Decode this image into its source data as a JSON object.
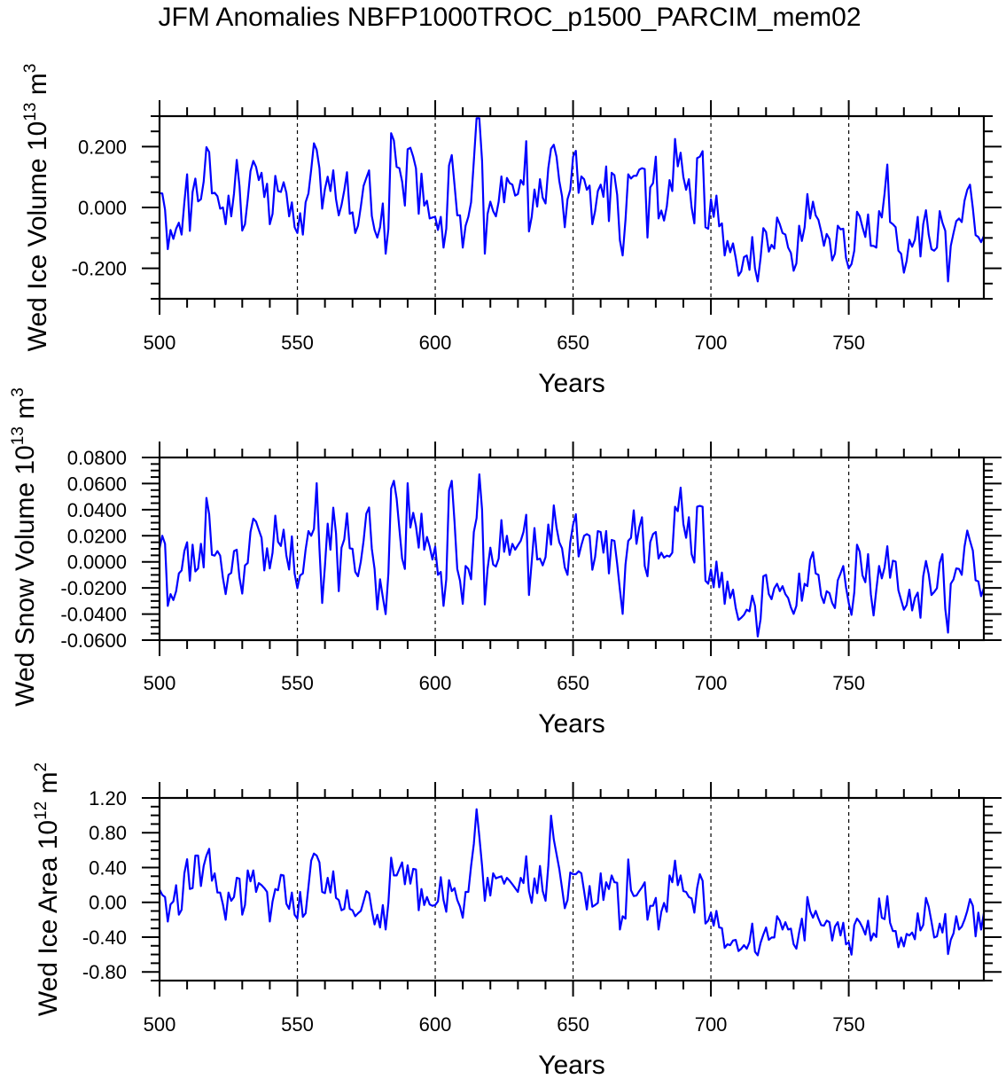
{
  "title": "JFM Anomalies NBFP1000TROC_p1500_PARCIM_mem02",
  "colors": {
    "series": "#0000ff",
    "axes": "#000000",
    "reference_lines": "#000000"
  },
  "chart_data": [
    {
      "type": "line",
      "xlabel": "Years",
      "ylabel": {
        "text": "Wed Ice Volume 10",
        "exp1": "13",
        "unit": " m",
        "exp2": "3"
      },
      "xlim": [
        500,
        799
      ],
      "ylim": [
        -0.3,
        0.3
      ],
      "x_start": 500,
      "xticks": [
        500,
        550,
        600,
        650,
        700,
        750
      ],
      "xtick_labels": [
        "500",
        "550",
        "600",
        "650",
        "700",
        "750"
      ],
      "yticks": [
        0.2,
        0.0,
        -0.2
      ],
      "ytick_labels": [
        "0.200",
        "0.000",
        "-0.200"
      ],
      "y_minor_step": 0.05,
      "x_minor_step": 10,
      "reference_lines_x": [
        550,
        600,
        650,
        700,
        750
      ],
      "grid": false,
      "values": [
        0.047,
        0.046,
        -0.007,
        -0.137,
        -0.074,
        -0.103,
        -0.07,
        -0.05,
        -0.089,
        0.017,
        0.109,
        -0.077,
        0.051,
        0.095,
        0.02,
        0.027,
        0.085,
        0.198,
        0.182,
        0.046,
        0.048,
        0.037,
        -0.004,
        0.0,
        -0.055,
        0.039,
        -0.029,
        0.046,
        0.156,
        0.071,
        -0.076,
        -0.055,
        0.027,
        0.119,
        0.153,
        0.133,
        0.09,
        0.114,
        0.034,
        0.078,
        -0.055,
        -0.021,
        0.104,
        0.054,
        0.051,
        0.083,
        0.048,
        -0.029,
        0.017,
        -0.065,
        -0.084,
        -0.019,
        -0.089,
        0.017,
        0.046,
        0.124,
        0.211,
        0.189,
        0.129,
        -0.004,
        0.061,
        0.101,
        0.054,
        0.122,
        0.027,
        -0.026,
        0.008,
        0.056,
        0.116,
        -0.021,
        -0.016,
        -0.084,
        -0.06,
        0.003,
        0.071,
        0.097,
        0.122,
        -0.028,
        -0.074,
        -0.099,
        -0.065,
        0.013,
        -0.152,
        -0.07,
        0.244,
        0.22,
        0.133,
        0.129,
        0.085,
        0.006,
        0.191,
        0.196,
        0.167,
        0.129,
        -0.021,
        0.111,
        0.006,
        0.022,
        -0.036,
        -0.033,
        -0.031,
        -0.074,
        -0.031,
        -0.132,
        -0.07,
        0.138,
        0.172,
        0.075,
        -0.026,
        -0.026,
        -0.132,
        -0.06,
        -0.031,
        0.017,
        0.153,
        0.293,
        0.293,
        0.153,
        -0.152,
        -0.021,
        0.019,
        -0.012,
        -0.029,
        0.019,
        0.102,
        0.017,
        0.097,
        0.08,
        0.075,
        0.039,
        0.044,
        0.09,
        0.075,
        0.218,
        -0.079,
        -0.031,
        0.059,
        0.003,
        0.093,
        0.032,
        0.013,
        0.129,
        0.193,
        0.206,
        0.167,
        0.087,
        0.037,
        -0.065,
        0.027,
        0.058,
        0.167,
        0.186,
        0.048,
        0.102,
        0.093,
        0.058,
        0.072,
        -0.055,
        -0.012,
        0.054,
        0.075,
        0.035,
        0.135,
        -0.045,
        0.114,
        0.106,
        0.042,
        -0.108,
        -0.158,
        -0.041,
        0.109,
        0.095,
        0.104,
        0.104,
        0.124,
        0.129,
        0.126,
        -0.099,
        0.066,
        0.08,
        0.167,
        -0.036,
        -0.01,
        -0.043,
        0.003,
        0.09,
        0.054,
        0.225,
        0.135,
        0.18,
        0.1,
        0.058,
        0.093,
        0.0,
        -0.052,
        0.162,
        0.167,
        0.185,
        -0.065,
        -0.07,
        0.027,
        -0.031,
        0.039,
        -0.062,
        -0.052,
        -0.158,
        -0.11,
        -0.147,
        -0.118,
        -0.166,
        -0.224,
        -0.21,
        -0.163,
        -0.158,
        -0.205,
        -0.097,
        -0.2,
        -0.243,
        -0.166,
        -0.068,
        -0.081,
        -0.145,
        -0.123,
        -0.135,
        -0.033,
        -0.055,
        -0.084,
        -0.089,
        -0.132,
        -0.149,
        -0.208,
        -0.184,
        -0.06,
        -0.11,
        -0.065,
        0.044,
        -0.036,
        0.019,
        -0.026,
        -0.041,
        -0.079,
        -0.126,
        -0.087,
        -0.103,
        -0.174,
        -0.152,
        -0.06,
        -0.072,
        -0.07,
        -0.166,
        -0.2,
        -0.186,
        -0.142,
        -0.014,
        -0.029,
        -0.065,
        -0.097,
        -0.023,
        -0.126,
        -0.126,
        -0.132,
        -0.012,
        -0.033,
        0.046,
        0.141,
        -0.048,
        -0.055,
        -0.065,
        -0.142,
        -0.152,
        -0.214,
        -0.176,
        -0.106,
        -0.129,
        -0.106,
        -0.031,
        -0.161,
        -0.055,
        -0.009,
        -0.089,
        -0.137,
        -0.142,
        -0.132,
        -0.012,
        -0.05,
        -0.077,
        -0.243,
        -0.126,
        -0.084,
        -0.045,
        -0.036,
        -0.048,
        0.022,
        0.058,
        0.075,
        -0.002,
        -0.091,
        -0.097,
        -0.114,
        -0.094
      ]
    },
    {
      "type": "line",
      "xlabel": "Years",
      "ylabel": {
        "text": "Wed Snow Volume 10",
        "exp1": "13",
        "unit": " m",
        "exp2": "3"
      },
      "xlim": [
        500,
        799
      ],
      "ylim": [
        -0.06,
        0.08
      ],
      "x_start": 500,
      "xticks": [
        500,
        550,
        600,
        650,
        700,
        750
      ],
      "xtick_labels": [
        "500",
        "550",
        "600",
        "650",
        "700",
        "750"
      ],
      "yticks": [
        0.08,
        0.06,
        0.04,
        0.02,
        0.0,
        -0.02,
        -0.04,
        -0.06
      ],
      "ytick_labels": [
        "0.0800",
        "0.0600",
        "0.0400",
        "0.0200",
        "0.0000",
        "-0.0200",
        "-0.0400",
        "-0.0600"
      ],
      "y_minor_step": 0.005,
      "x_minor_step": 10,
      "reference_lines_x": [
        550,
        600,
        650,
        700,
        750
      ],
      "grid": false,
      "values": [
        0.0104,
        0.02,
        0.0138,
        -0.0338,
        -0.0247,
        -0.0293,
        -0.0225,
        -0.0089,
        -0.0066,
        0.0082,
        0.015,
        -0.0145,
        0.0132,
        -0.0073,
        -0.005,
        0.0138,
        -0.0043,
        0.049,
        0.0365,
        0.0054,
        0.0048,
        0.0082,
        0.0048,
        -0.0122,
        -0.0247,
        -0.01,
        -0.0084,
        0.0082,
        0.0093,
        -0.0122,
        -0.0243,
        -0.0027,
        -0.0009,
        0.0229,
        0.0331,
        0.0308,
        0.0245,
        0.0184,
        -0.0066,
        0.0104,
        -0.005,
        0.007,
        0.0354,
        0.0154,
        0.0122,
        0.0247,
        0.0048,
        -0.0059,
        0.0195,
        -0.0089,
        -0.0202,
        -0.0104,
        -0.0089,
        0.0093,
        0.0236,
        0.02,
        0.0252,
        0.0603,
        0.0104,
        -0.0315,
        -0.0032,
        0.0293,
        0.0093,
        0.0415,
        0.0218,
        -0.0225,
        0.0109,
        0.0172,
        0.0372,
        0.0104,
        0.01,
        -0.0077,
        -0.0111,
        0.0002,
        0.0161,
        0.037,
        0.0417,
        0.01,
        -0.0054,
        -0.0365,
        -0.0134,
        -0.027,
        -0.0401,
        -0.0089,
        0.0562,
        0.0621,
        0.0485,
        0.0252,
        0.0025,
        -0.0054,
        0.0603,
        0.0263,
        0.0376,
        0.0274,
        0.0109,
        0.037,
        0.0093,
        0.0191,
        0.0116,
        0.0018,
        0.0116,
        -0.01,
        -0.0077,
        -0.0338,
        -0.0134,
        0.0547,
        0.0621,
        0.0308,
        -0.0054,
        -0.0145,
        -0.0322,
        -0.0032,
        -0.0054,
        -0.0134,
        0.0229,
        0.0336,
        0.0671,
        0.0399,
        -0.0327,
        -0.0054,
        0.0109,
        -0.002,
        -0.0036,
        0.0025,
        0.032,
        0.0077,
        0.02,
        0.0054,
        0.0138,
        0.0093,
        0.0127,
        0.0161,
        0.0229,
        0.0361,
        -0.0254,
        0.0002,
        0.0259,
        0.0018,
        0.0025,
        -0.0027,
        0.0036,
        0.0286,
        0.0132,
        0.0433,
        0.0263,
        0.015,
        0.0104,
        -0.0043,
        -0.01,
        0.015,
        0.0286,
        0.0365,
        0.0041,
        0.0127,
        0.02,
        0.0213,
        0.02,
        -0.0061,
        0.0036,
        0.0236,
        0.0229,
        0.007,
        0.0236,
        -0.0089,
        0.0168,
        0.0161,
        -0.0014,
        -0.0213,
        -0.0399,
        -0.002,
        0.0161,
        0.0184,
        0.0395,
        0.0138,
        0.0263,
        0.0342,
        -0.0032,
        -0.0111,
        0.015,
        0.0213,
        0.0229,
        0.0025,
        0.007,
        0.0032,
        0.0048,
        0.0041,
        0.007,
        0.0422,
        0.0388,
        0.0569,
        0.029,
        0.0184,
        0.0342,
        0.0059,
        -0.0005,
        0.0422,
        0.0429,
        0.0422,
        -0.0145,
        -0.0168,
        -0.0059,
        -0.0195,
        0.0002,
        -0.0195,
        -0.0082,
        -0.0322,
        -0.015,
        -0.0277,
        -0.0213,
        -0.0354,
        -0.0445,
        -0.0429,
        -0.0406,
        -0.0367,
        -0.0379,
        -0.0259,
        -0.0338,
        -0.0572,
        -0.044,
        -0.0111,
        -0.01,
        -0.0247,
        -0.0286,
        -0.0202,
        -0.0168,
        -0.0225,
        -0.0186,
        -0.0247,
        -0.0277,
        -0.0349,
        -0.0399,
        -0.0338,
        -0.0089,
        -0.0299,
        -0.0168,
        -0.0186,
        0.0014,
        0.0075,
        -0.0089,
        -0.01,
        -0.0259,
        -0.0315,
        -0.0225,
        -0.024,
        -0.0315,
        -0.0354,
        -0.0141,
        -0.0089,
        -0.0032,
        -0.0195,
        -0.0315,
        -0.0406,
        -0.0236,
        0.0132,
        0.0077,
        -0.0104,
        -0.0156,
        0.0059,
        -0.0247,
        -0.0411,
        -0.0213,
        -0.0032,
        -0.0127,
        -0.0043,
        0.012,
        -0.0122,
        0.0009,
        0.0002,
        -0.0218,
        -0.0293,
        -0.0367,
        -0.0331,
        -0.0213,
        -0.0372,
        -0.0277,
        -0.0236,
        -0.0429,
        -0.0111,
        0.0007,
        -0.0095,
        -0.0254,
        -0.0231,
        -0.0202,
        -0.0009,
        0.0059,
        -0.0361,
        -0.0542,
        -0.0168,
        -0.0134,
        -0.005,
        -0.0054,
        -0.01,
        0.0116,
        0.024,
        0.0161,
        0.0086,
        -0.0141,
        -0.015,
        -0.0263,
        -0.0202
      ]
    },
    {
      "type": "line",
      "xlabel": "Years",
      "ylabel": {
        "text": "Wed Ice Area 10",
        "exp1": "12",
        "unit": " m",
        "exp2": "2"
      },
      "xlim": [
        500,
        799
      ],
      "ylim": [
        -0.9,
        1.2
      ],
      "x_start": 500,
      "xticks": [
        500,
        550,
        600,
        650,
        700,
        750
      ],
      "xtick_labels": [
        "500",
        "550",
        "600",
        "650",
        "700",
        "750"
      ],
      "yticks": [
        1.2,
        0.8,
        0.4,
        0.0,
        -0.4,
        -0.8
      ],
      "ytick_labels": [
        "1.20",
        "0.80",
        "0.40",
        "0.00",
        "-0.40",
        "-0.80"
      ],
      "y_minor_step": 0.1,
      "x_minor_step": 10,
      "reference_lines_x": [
        550,
        600,
        650,
        700,
        750
      ],
      "grid": false,
      "values": [
        0.146,
        0.085,
        0.061,
        -0.221,
        -0.024,
        0.01,
        0.197,
        -0.143,
        -0.085,
        0.333,
        0.496,
        0.153,
        0.163,
        0.537,
        0.537,
        0.187,
        0.418,
        0.537,
        0.615,
        0.248,
        0.333,
        0.112,
        0.112,
        -0.024,
        -0.201,
        0.112,
        0.017,
        0.061,
        0.282,
        0.272,
        -0.143,
        -0.031,
        0.367,
        0.241,
        0.367,
        0.119,
        0.221,
        0.197,
        0.163,
        0.119,
        -0.221,
        0.01,
        0.153,
        0.139,
        0.316,
        0.309,
        -0.017,
        -0.075,
        0.112,
        -0.143,
        -0.187,
        0.119,
        -0.167,
        -0.126,
        0.18,
        0.479,
        0.561,
        0.537,
        0.459,
        0.119,
        0.105,
        0.282,
        0.112,
        0.357,
        0.051,
        0.027,
        -0.092,
        -0.075,
        0.139,
        -0.075,
        -0.092,
        -0.16,
        -0.126,
        -0.099,
        0.01,
        0.129,
        0.105,
        -0.092,
        -0.255,
        -0.143,
        -0.289,
        -0.031,
        -0.313,
        -0.007,
        0.513,
        0.309,
        0.309,
        0.384,
        0.459,
        0.207,
        0.425,
        0.214,
        0.384,
        0.377,
        -0.092,
        0.153,
        -0.031,
        0.061,
        -0.024,
        -0.041,
        -0.031,
        0.01,
        0.289,
        0.027,
        -0.109,
        0.255,
        0.129,
        0.163,
        0.027,
        -0.051,
        -0.177,
        0.119,
        0.119,
        0.418,
        0.673,
        1.071,
        0.758,
        0.418,
        0.017,
        0.282,
        0.078,
        0.333,
        0.275,
        0.289,
        0.299,
        0.214,
        0.282,
        0.248,
        0.207,
        0.163,
        0.119,
        0.282,
        0.221,
        0.53,
        0.129,
        -0.007,
        0.275,
        0.105,
        0.418,
        0.129,
        0.017,
        0.418,
        0.996,
        0.724,
        0.554,
        0.384,
        0.163,
        -0.068,
        0.027,
        0.343,
        0.323,
        0.323,
        0.357,
        0.333,
        0.129,
        -0.082,
        0.187,
        -0.051,
        -0.031,
        -0.007,
        0.333,
        0.027,
        0.231,
        0.153,
        0.309,
        0.231,
        0.224,
        -0.313,
        -0.16,
        -0.187,
        0.493,
        0.139,
        0.071,
        0.078,
        0.129,
        0.173,
        0.231,
        -0.201,
        -0.041,
        -0.041,
        0.051,
        -0.313,
        -0.109,
        -0.007,
        -0.109,
        0.309,
        0.231,
        0.479,
        0.197,
        0.309,
        0.129,
        0.119,
        0.061,
        0.044,
        -0.119,
        0.163,
        0.323,
        0.248,
        -0.245,
        -0.211,
        -0.119,
        -0.269,
        -0.099,
        -0.289,
        -0.296,
        -0.524,
        -0.483,
        -0.493,
        -0.439,
        -0.432,
        -0.561,
        -0.534,
        -0.493,
        -0.534,
        -0.459,
        -0.245,
        -0.568,
        -0.609,
        -0.466,
        -0.371,
        -0.289,
        -0.432,
        -0.405,
        -0.405,
        -0.16,
        -0.211,
        -0.313,
        -0.228,
        -0.313,
        -0.303,
        -0.483,
        -0.534,
        -0.347,
        -0.187,
        -0.439,
        0.061,
        -0.099,
        -0.177,
        -0.099,
        -0.187,
        -0.262,
        -0.269,
        -0.211,
        -0.228,
        -0.439,
        -0.279,
        -0.228,
        -0.381,
        -0.235,
        -0.483,
        -0.459,
        -0.602,
        -0.262,
        -0.187,
        -0.228,
        -0.289,
        -0.371,
        -0.211,
        -0.439,
        -0.357,
        -0.398,
        0.044,
        -0.177,
        -0.194,
        0.071,
        -0.235,
        -0.33,
        -0.33,
        -0.517,
        -0.405,
        -0.507,
        -0.364,
        -0.381,
        -0.347,
        -0.425,
        -0.126,
        -0.323,
        -0.262,
        0.051,
        -0.051,
        -0.221,
        -0.405,
        -0.391,
        -0.245,
        -0.347,
        -0.133,
        -0.595,
        -0.432,
        -0.357,
        -0.16,
        -0.313,
        -0.279,
        -0.201,
        -0.099,
        0.037,
        -0.041,
        -0.391,
        -0.119,
        -0.313,
        -0.126
      ]
    }
  ]
}
